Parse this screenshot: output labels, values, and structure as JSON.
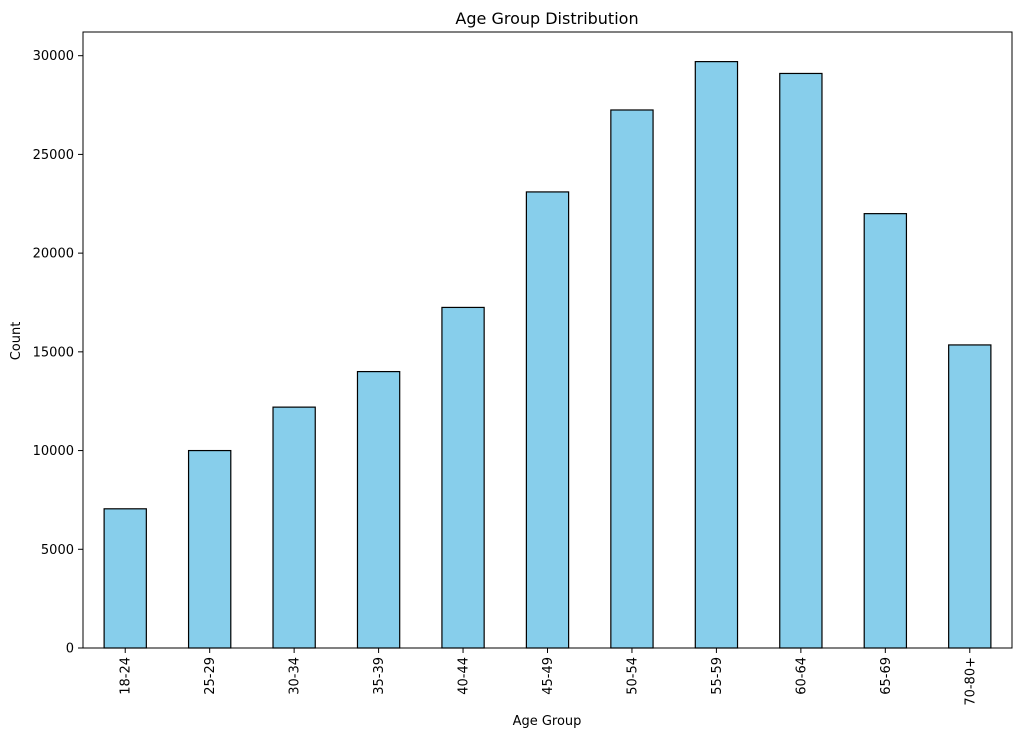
{
  "chart_data": {
    "type": "bar",
    "title": "Age Group Distribution",
    "xlabel": "Age Group",
    "ylabel": "Count",
    "categories": [
      "18-24",
      "25-29",
      "30-34",
      "35-39",
      "40-44",
      "45-49",
      "50-54",
      "55-59",
      "60-64",
      "65-69",
      "70-80+"
    ],
    "values": [
      7050,
      10000,
      12200,
      14000,
      17250,
      23100,
      27250,
      29700,
      29100,
      22000,
      15350
    ],
    "ylim": [
      0,
      31200
    ],
    "yticks": [
      0,
      5000,
      10000,
      15000,
      20000,
      25000,
      30000
    ],
    "bar_color": "#87ceeb",
    "edge_color": "#000000",
    "grid": false,
    "legend": "none"
  }
}
